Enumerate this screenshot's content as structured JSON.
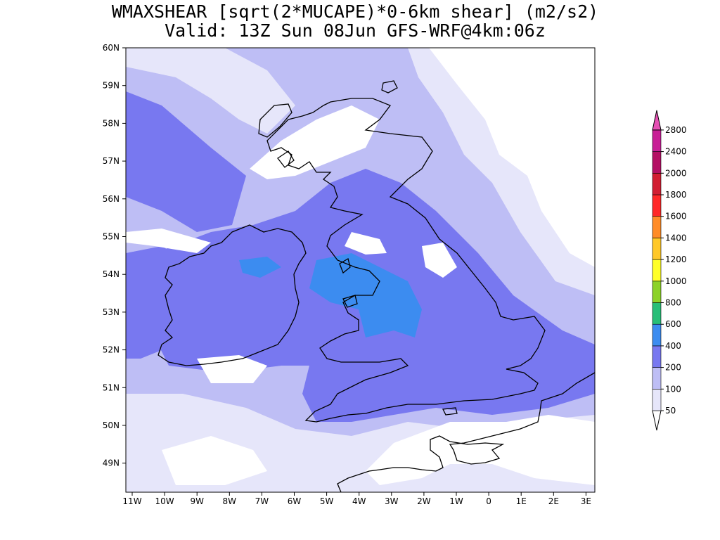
{
  "header": {
    "title": "WMAXSHEAR [sqrt(2*MUCAPE)*0-6km shear] (m2/s2)",
    "subtitle": "Valid: 13Z Sun 08Jun GFS-WRF@4km:06z"
  },
  "map": {
    "lat_labels": [
      "60N",
      "59N",
      "58N",
      "57N",
      "56N",
      "55N",
      "54N",
      "53N",
      "52N",
      "51N",
      "50N",
      "49N"
    ],
    "lon_labels": [
      "11W",
      "10W",
      "9W",
      "8W",
      "7W",
      "6W",
      "5W",
      "4W",
      "3W",
      "2W",
      "1W",
      "0",
      "1E",
      "2E",
      "3E"
    ],
    "coast_color": "#000000"
  },
  "colorbar": {
    "levels": [
      "50",
      "100",
      "200",
      "400",
      "600",
      "800",
      "1000",
      "1200",
      "1400",
      "1600",
      "1800",
      "2000",
      "2400",
      "2800"
    ],
    "colors": [
      "#ffffff",
      "#e6e6fa",
      "#bebef5",
      "#7878f0",
      "#3c8cf0",
      "#28be78",
      "#8cd228",
      "#ffff28",
      "#ffc828",
      "#ff8c28",
      "#ff2828",
      "#d21e32",
      "#b40f64",
      "#c81e96",
      "#e650b4"
    ]
  }
}
